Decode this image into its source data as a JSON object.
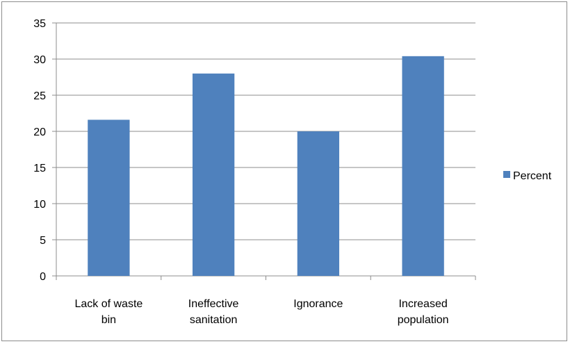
{
  "chart_data": {
    "type": "bar",
    "title": "",
    "xlabel": "",
    "ylabel": "",
    "categories": [
      [
        "Lack of waste",
        "bin"
      ],
      [
        "Ineffective",
        "sanitation"
      ],
      [
        "Ignorance"
      ],
      [
        "Increased",
        "population"
      ]
    ],
    "series": [
      {
        "name": "Percent",
        "color": "#4f81bd",
        "values": [
          21.6,
          28.0,
          20.0,
          30.4
        ]
      }
    ],
    "ylim": [
      0,
      35
    ],
    "yticks": [
      0,
      5,
      10,
      15,
      20,
      25,
      30,
      35
    ],
    "grid": true,
    "legend_position": "right"
  }
}
